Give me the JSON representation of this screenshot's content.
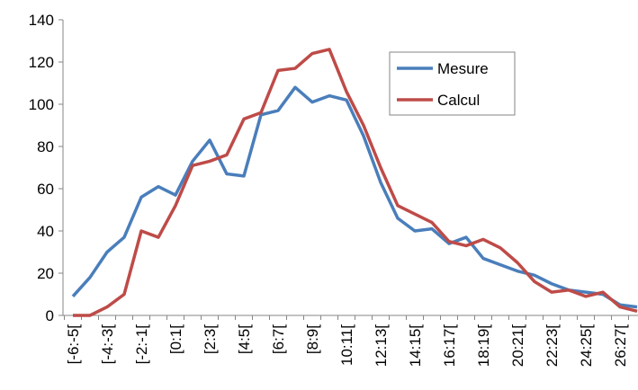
{
  "chart_data": {
    "type": "line",
    "categories": [
      "[-6:-5[",
      null,
      "[-4:-3[",
      null,
      "[-2:-1[",
      null,
      "[0:1[",
      null,
      "[2:3[",
      null,
      "[4:5[",
      null,
      "[6:7[",
      null,
      "[8:9[",
      null,
      "10:11[",
      null,
      "12:13[",
      null,
      "14:15[",
      null,
      "16:17[",
      null,
      "18:19[",
      null,
      "20:21[",
      null,
      "22:23[",
      null,
      "24:25[",
      null,
      "26:27[",
      null
    ],
    "series": [
      {
        "name": "Mesure",
        "color": "#4a7ebb",
        "values": [
          9,
          18,
          30,
          37,
          56,
          61,
          57,
          73,
          83,
          67,
          66,
          95,
          97,
          108,
          101,
          104,
          102,
          85,
          63,
          46,
          40,
          41,
          34,
          37,
          27,
          24,
          21,
          19,
          15,
          12,
          11,
          10,
          5,
          4
        ]
      },
      {
        "name": "Calcul",
        "color": "#be4b48",
        "values": [
          0,
          0,
          4,
          10,
          40,
          37,
          52,
          71,
          73,
          76,
          93,
          96,
          116,
          117,
          124,
          126,
          106,
          90,
          70,
          52,
          48,
          44,
          35,
          33,
          36,
          32,
          25,
          16,
          11,
          12,
          9,
          11,
          4,
          2
        ]
      }
    ],
    "ylim": [
      0,
      140
    ],
    "yticks": [
      0,
      20,
      40,
      60,
      80,
      100,
      120,
      140
    ],
    "grid": false,
    "legend": "top-right"
  }
}
